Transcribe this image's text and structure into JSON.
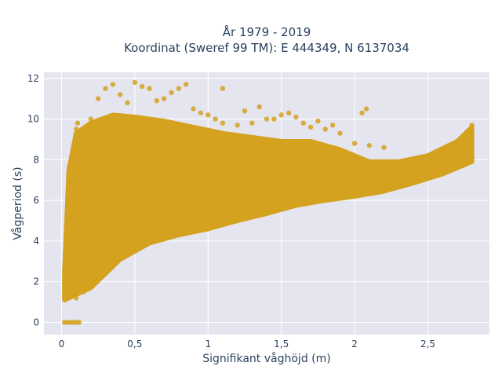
{
  "chart_data": {
    "type": "scatter",
    "title_line1": "År 1979 - 2019",
    "title_line2": "Koordinat (Sweref 99 TM): E 444349, N 6137034",
    "xlabel": "Signifikant våghöjd (m)",
    "ylabel": "Vågperiod (s)",
    "xlim": [
      -0.12,
      2.92
    ],
    "ylim": [
      -0.6,
      12.3
    ],
    "x_ticks": [
      0,
      0.5,
      1,
      1.5,
      2,
      2.5
    ],
    "x_tick_labels": [
      "0",
      "0,5",
      "1",
      "1,5",
      "2",
      "2,5"
    ],
    "y_ticks": [
      0,
      2,
      4,
      6,
      8,
      10,
      12
    ],
    "y_tick_labels": [
      "0",
      "2",
      "4",
      "6",
      "8",
      "10",
      "12"
    ],
    "grid": true,
    "colors": {
      "marker": "#d4a21e",
      "plot_bg": "#e5e5f0",
      "grid": "#ffffff",
      "text": "#2a3f5f"
    },
    "series": [
      {
        "marker_color": "#d4a21e",
        "points": [
          [
            0.02,
            0.0
          ],
          [
            0.04,
            0.0
          ],
          [
            0.06,
            0.0
          ],
          [
            0.08,
            0.0
          ],
          [
            0.1,
            0.0
          ],
          [
            0.12,
            0.0
          ],
          [
            0.02,
            1.3
          ],
          [
            0.03,
            2.0
          ],
          [
            0.04,
            3.0
          ],
          [
            0.05,
            4.0
          ],
          [
            0.06,
            5.5
          ],
          [
            0.07,
            6.8
          ],
          [
            0.08,
            7.6
          ],
          [
            0.09,
            8.6
          ],
          [
            0.1,
            9.5
          ],
          [
            0.11,
            9.8
          ],
          [
            0.1,
            1.2
          ],
          [
            0.15,
            1.5
          ],
          [
            0.2,
            1.9
          ],
          [
            0.25,
            2.4
          ],
          [
            0.3,
            2.8
          ],
          [
            0.4,
            3.3
          ],
          [
            0.5,
            3.7
          ],
          [
            0.6,
            4.0
          ],
          [
            0.7,
            4.2
          ],
          [
            0.8,
            4.3
          ],
          [
            0.9,
            4.5
          ],
          [
            1.0,
            4.6
          ],
          [
            1.1,
            4.8
          ],
          [
            1.2,
            5.0
          ],
          [
            1.3,
            5.2
          ],
          [
            1.4,
            5.4
          ],
          [
            1.5,
            5.6
          ],
          [
            1.6,
            5.8
          ],
          [
            1.7,
            5.9
          ],
          [
            1.8,
            6.0
          ],
          [
            1.9,
            6.1
          ],
          [
            2.0,
            6.2
          ],
          [
            2.1,
            6.35
          ],
          [
            2.2,
            6.5
          ],
          [
            2.3,
            6.7
          ],
          [
            2.4,
            6.9
          ],
          [
            2.5,
            7.1
          ],
          [
            2.6,
            7.4
          ],
          [
            2.7,
            7.7
          ],
          [
            2.75,
            7.9
          ],
          [
            2.5,
            8.0
          ],
          [
            2.6,
            8.3
          ],
          [
            2.7,
            8.7
          ],
          [
            2.75,
            9.2
          ],
          [
            2.8,
            9.7
          ],
          [
            2.4,
            7.8
          ],
          [
            2.3,
            7.5
          ],
          [
            2.2,
            7.3
          ],
          [
            2.1,
            7.2
          ],
          [
            2.0,
            7.0
          ],
          [
            0.2,
            10.0
          ],
          [
            0.25,
            11.0
          ],
          [
            0.3,
            11.5
          ],
          [
            0.35,
            11.7
          ],
          [
            0.4,
            11.2
          ],
          [
            0.45,
            10.8
          ],
          [
            0.5,
            11.8
          ],
          [
            0.55,
            11.6
          ],
          [
            0.6,
            11.5
          ],
          [
            0.7,
            11.0
          ],
          [
            0.8,
            11.5
          ],
          [
            0.85,
            11.7
          ],
          [
            0.9,
            10.5
          ],
          [
            0.95,
            10.3
          ],
          [
            1.0,
            10.2
          ],
          [
            1.05,
            10.0
          ],
          [
            1.1,
            9.8
          ],
          [
            1.2,
            9.7
          ],
          [
            1.3,
            9.8
          ],
          [
            1.4,
            10.0
          ],
          [
            1.5,
            10.2
          ],
          [
            1.55,
            10.3
          ],
          [
            1.6,
            10.1
          ],
          [
            1.65,
            9.8
          ],
          [
            1.7,
            9.6
          ],
          [
            1.8,
            9.5
          ],
          [
            1.9,
            9.3
          ],
          [
            2.0,
            8.8
          ],
          [
            2.05,
            10.3
          ],
          [
            2.08,
            10.5
          ],
          [
            1.1,
            11.5
          ],
          [
            1.45,
            10.0
          ],
          [
            0.75,
            11.3
          ],
          [
            0.65,
            10.9
          ],
          [
            1.25,
            10.4
          ],
          [
            1.35,
            10.6
          ],
          [
            1.75,
            9.9
          ],
          [
            1.85,
            9.7
          ],
          [
            2.1,
            8.7
          ],
          [
            2.2,
            8.6
          ]
        ]
      }
    ]
  }
}
